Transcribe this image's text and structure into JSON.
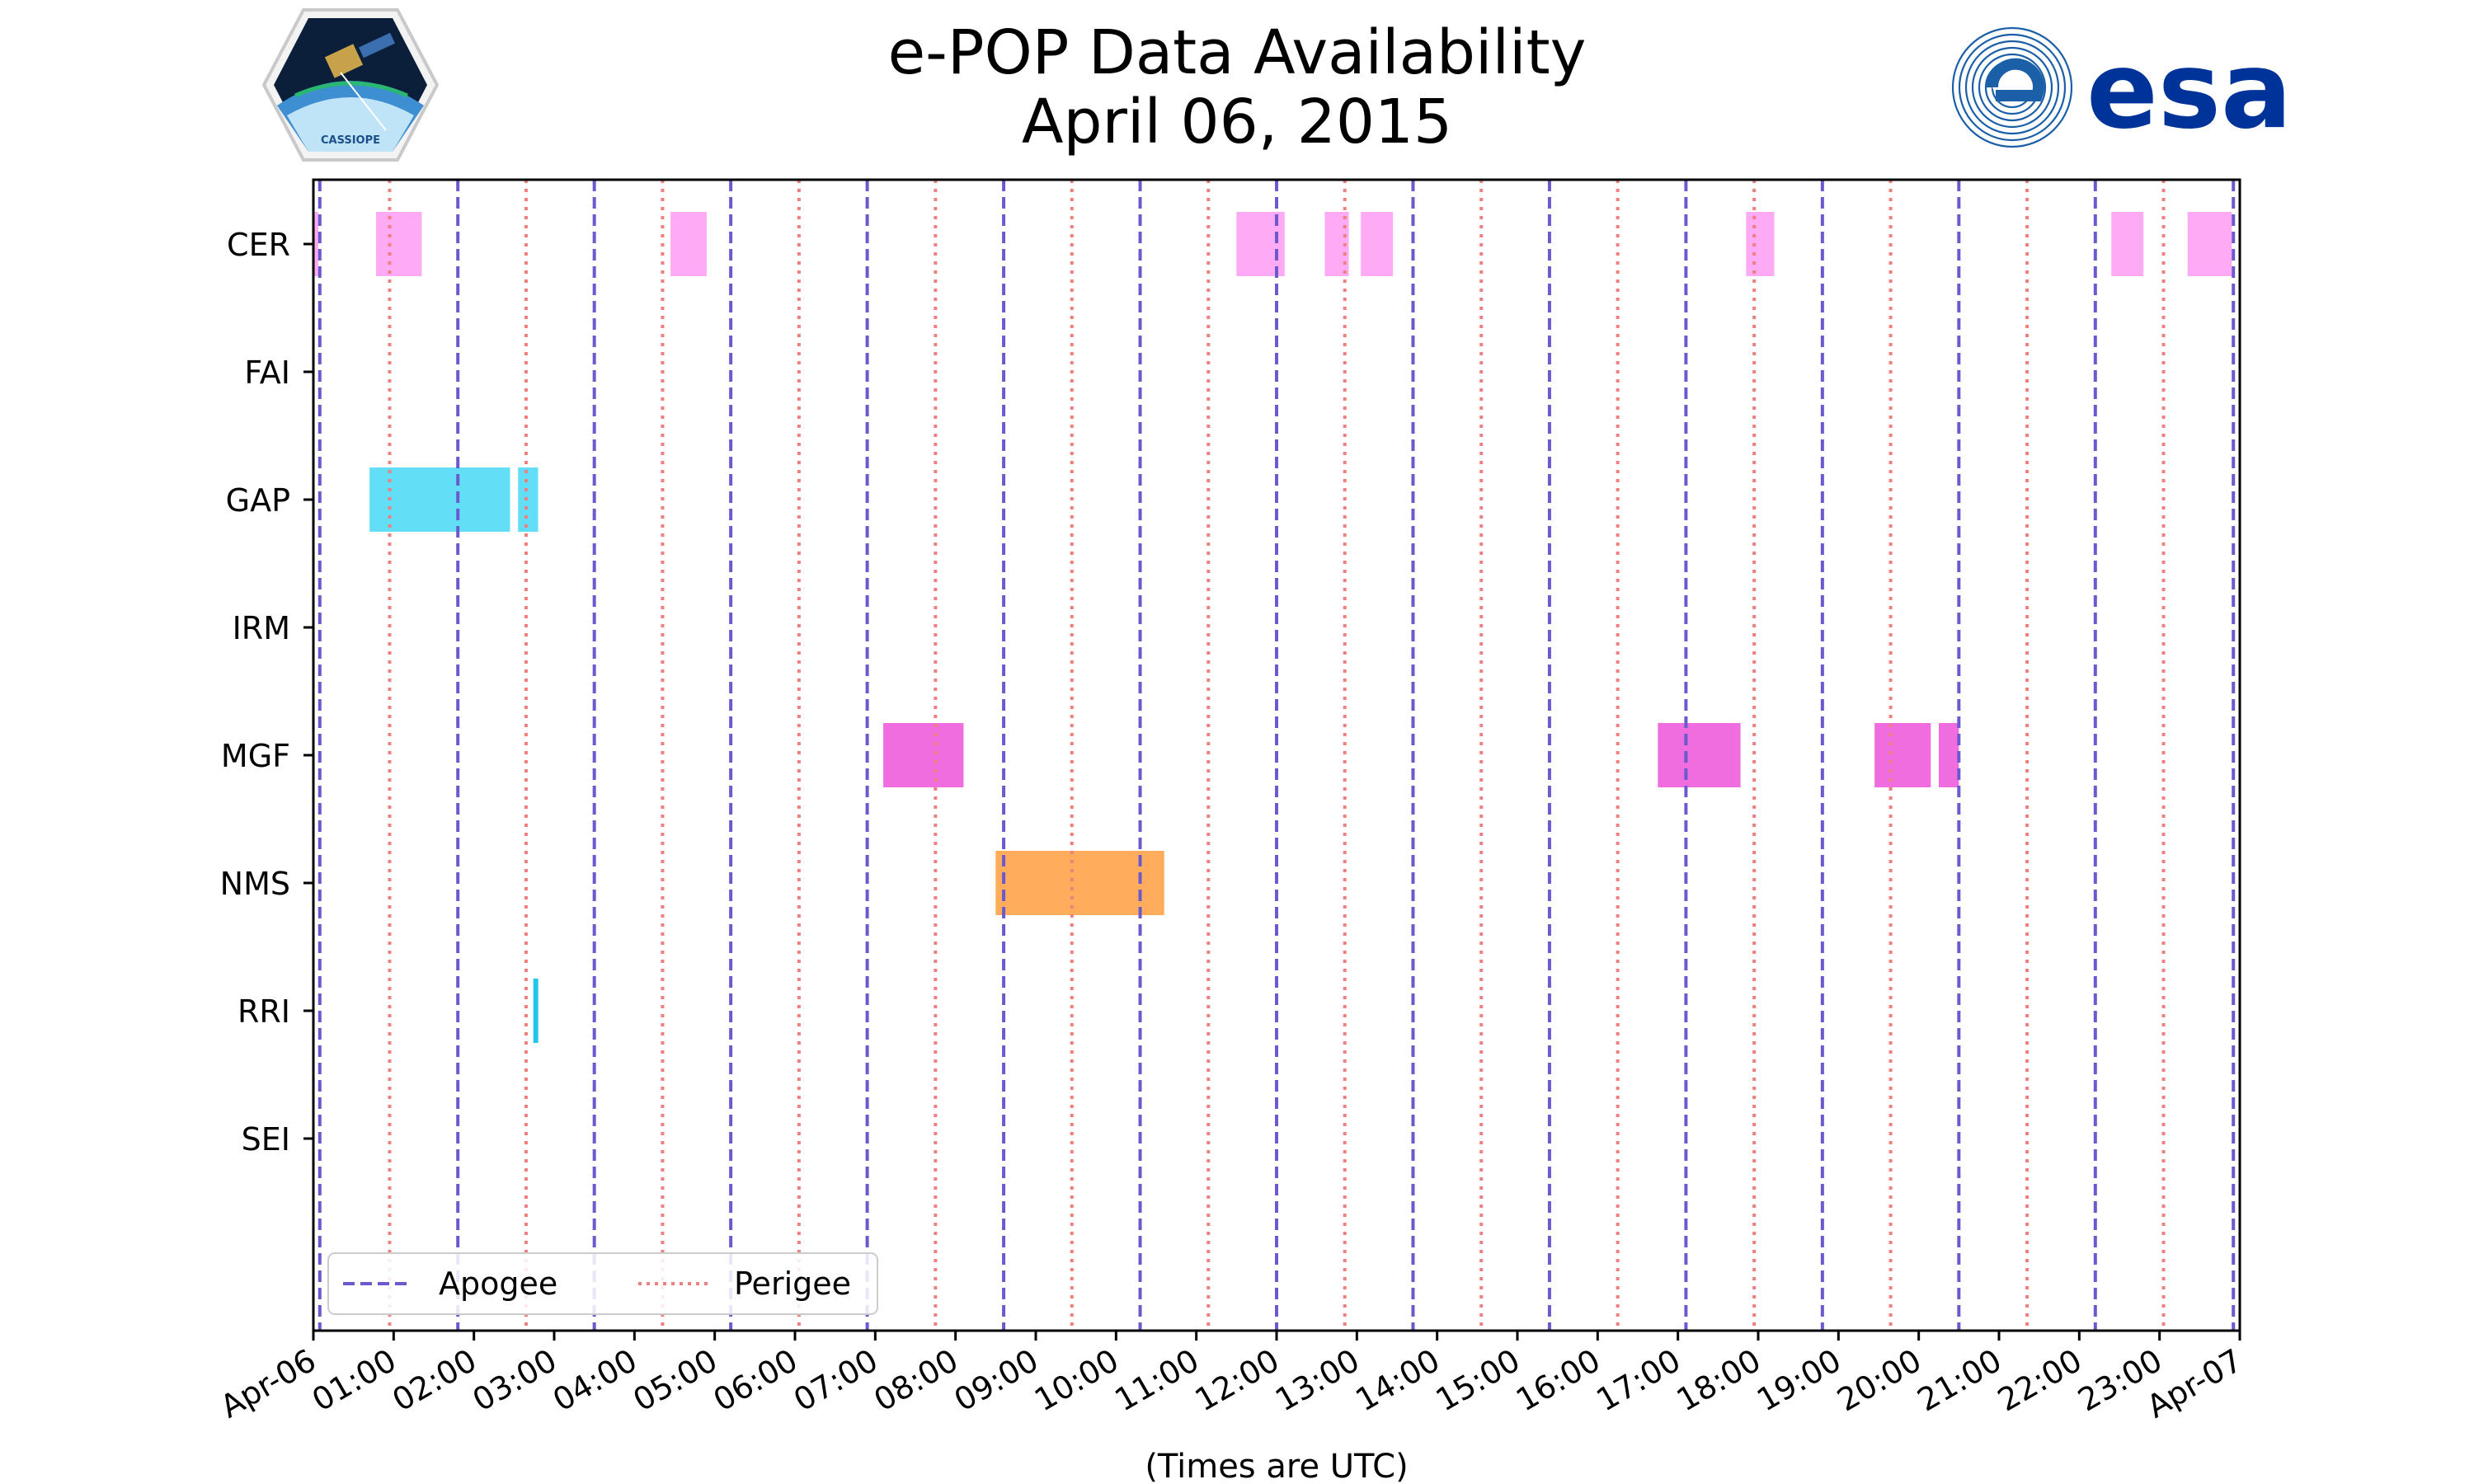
{
  "header": {
    "title_line1": "e-POP Data Availability",
    "title_line2": "April 06, 2015",
    "left_logo_text": "CASSIOPE",
    "right_logo_text": "esa"
  },
  "colors": {
    "apogee": "#6a5acd",
    "perigee": "#f08080",
    "cer": "#ffaaf5",
    "gap": "#62def7",
    "mgf": "#ef6ddf",
    "nms": "#ffad5c",
    "rri": "#22c6ed"
  },
  "chart_data": {
    "type": "timeline",
    "title": "e-POP Data Availability\nApril 06, 2015",
    "xlabel": "(Times are UTC)",
    "ylabel": "",
    "xlim_hours": [
      0,
      24
    ],
    "x_tick_hours": [
      0,
      1,
      2,
      3,
      4,
      5,
      6,
      7,
      8,
      9,
      10,
      11,
      12,
      13,
      14,
      15,
      16,
      17,
      18,
      19,
      20,
      21,
      22,
      23,
      24
    ],
    "x_tick_labels": [
      "Apr-06",
      "01:00",
      "02:00",
      "03:00",
      "04:00",
      "05:00",
      "06:00",
      "07:00",
      "08:00",
      "09:00",
      "10:00",
      "11:00",
      "12:00",
      "13:00",
      "14:00",
      "15:00",
      "16:00",
      "17:00",
      "18:00",
      "19:00",
      "20:00",
      "21:00",
      "22:00",
      "23:00",
      "Apr-07"
    ],
    "categories": [
      "CER",
      "FAI",
      "GAP",
      "IRM",
      "MGF",
      "NMS",
      "RRI",
      "SEI"
    ],
    "apogee_hours": [
      0.08,
      1.8,
      3.5,
      5.2,
      6.9,
      8.6,
      10.3,
      12.0,
      13.7,
      15.4,
      17.1,
      18.8,
      20.5,
      22.2,
      23.92
    ],
    "perigee_hours": [
      0.95,
      2.65,
      4.35,
      6.05,
      7.75,
      9.45,
      11.15,
      12.85,
      14.55,
      16.25,
      17.95,
      19.65,
      21.35,
      23.05
    ],
    "series": [
      {
        "name": "CER",
        "color_key": "cer",
        "intervals": [
          [
            0.0,
            0.05
          ],
          [
            0.78,
            1.35
          ],
          [
            4.45,
            4.9
          ],
          [
            11.5,
            12.1
          ],
          [
            12.6,
            12.9
          ],
          [
            13.05,
            13.45
          ],
          [
            17.85,
            18.2
          ],
          [
            22.4,
            22.8
          ],
          [
            23.35,
            23.9
          ]
        ]
      },
      {
        "name": "FAI",
        "color_key": "cer",
        "intervals": []
      },
      {
        "name": "GAP",
        "color_key": "gap",
        "intervals": [
          [
            0.7,
            2.45
          ],
          [
            2.55,
            2.8
          ]
        ]
      },
      {
        "name": "IRM",
        "color_key": "gap",
        "intervals": []
      },
      {
        "name": "MGF",
        "color_key": "mgf",
        "intervals": [
          [
            7.1,
            8.1
          ],
          [
            16.75,
            17.78
          ],
          [
            19.45,
            20.15
          ],
          [
            20.25,
            20.5
          ]
        ]
      },
      {
        "name": "NMS",
        "color_key": "nms",
        "intervals": [
          [
            8.5,
            10.6
          ]
        ]
      },
      {
        "name": "RRI",
        "color_key": "rri",
        "intervals": [
          [
            2.74,
            2.79
          ]
        ]
      },
      {
        "name": "SEI",
        "color_key": "rri",
        "intervals": []
      }
    ],
    "legend": {
      "placement": "lower-left",
      "entries": [
        {
          "label": "Apogee",
          "style": "dashed",
          "color_key": "apogee"
        },
        {
          "label": "Perigee",
          "style": "dotted",
          "color_key": "perigee"
        }
      ]
    },
    "grid": false
  }
}
